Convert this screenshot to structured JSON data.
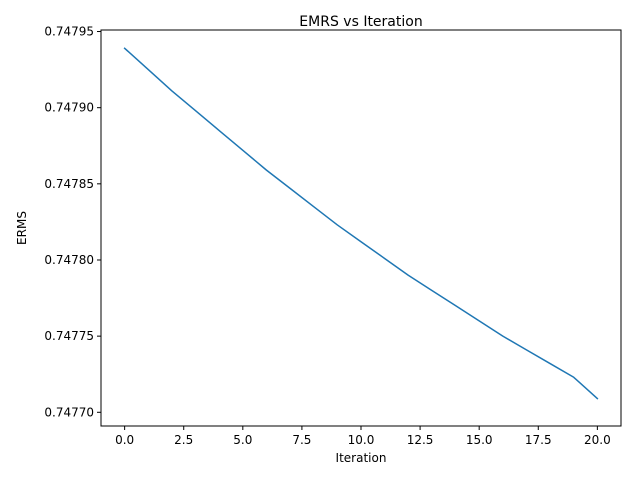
{
  "chart_data": {
    "type": "line",
    "title": "EMRS vs Iteration",
    "xlabel": "Iteration",
    "ylabel": "ERMS",
    "xlim": [
      -1,
      21
    ],
    "ylim": [
      0.747691,
      0.747951
    ],
    "grid": false,
    "legend": "none",
    "x_ticks": [
      0.0,
      2.5,
      5.0,
      7.5,
      10.0,
      12.5,
      15.0,
      17.5,
      20.0
    ],
    "x_tick_labels": [
      "0.0",
      "2.5",
      "5.0",
      "7.5",
      "10.0",
      "12.5",
      "15.0",
      "17.5",
      "20.0"
    ],
    "y_ticks": [
      0.7477,
      0.74775,
      0.7478,
      0.74785,
      0.7479,
      0.74795
    ],
    "y_tick_labels": [
      "0.74770",
      "0.74775",
      "0.74780",
      "0.74785",
      "0.74790",
      "0.74795"
    ],
    "series": [
      {
        "color": "#1f77b4",
        "x": [
          0,
          1,
          2,
          3,
          4,
          5,
          6,
          7,
          8,
          9,
          10,
          11,
          12,
          13,
          14,
          15,
          16,
          17,
          18,
          19,
          20
        ],
        "y": [
          0.747939,
          0.747925,
          0.747911,
          0.747898,
          0.747885,
          0.747872,
          0.747859,
          0.747847,
          0.747835,
          0.747823,
          0.747812,
          0.747801,
          0.74779,
          0.74778,
          0.74777,
          0.74776,
          0.74775,
          0.747741,
          0.747732,
          0.747723,
          0.747709
        ]
      }
    ]
  }
}
